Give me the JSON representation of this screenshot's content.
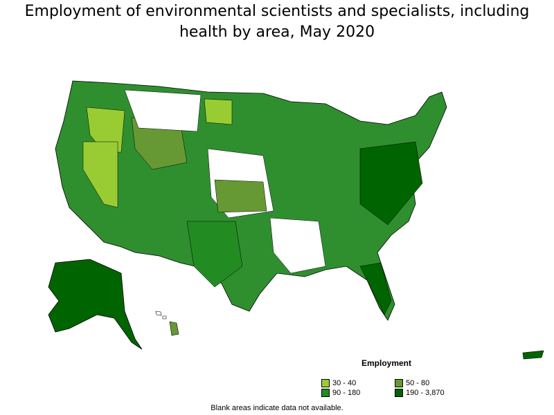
{
  "title": "Employment of environmental scientists and specialists, including health by area, May 2020",
  "legend": {
    "title": "Employment",
    "items": [
      {
        "label": "30 - 40",
        "color": "#99cc33"
      },
      {
        "label": "50 - 80",
        "color": "#669933"
      },
      {
        "label": "90 - 180",
        "color": "#228b22"
      },
      {
        "label": "190 - 3,870",
        "color": "#006400"
      }
    ]
  },
  "footnote": "Blank areas indicate data not available."
}
